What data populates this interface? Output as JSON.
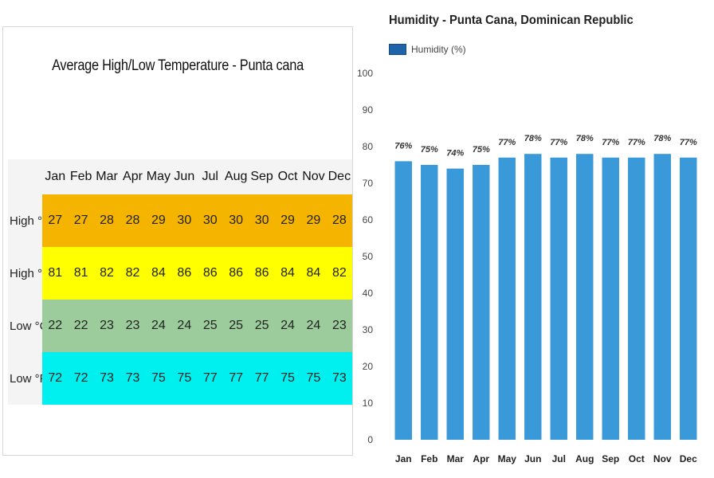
{
  "temperature_table": {
    "title": "Average High/Low Temperature - Punta cana",
    "months": [
      "Jan",
      "Feb",
      "Mar",
      "Apr",
      "May",
      "Jun",
      "Jul",
      "Aug",
      "Sep",
      "Oct",
      "Nov",
      "Dec"
    ],
    "rows": [
      {
        "label": "High °C",
        "color": "#f5b400",
        "values": [
          "27",
          "27",
          "28",
          "28",
          "29",
          "30",
          "30",
          "30",
          "30",
          "29",
          "29",
          "28"
        ]
      },
      {
        "label": "High °F",
        "color": "#ffff00",
        "values": [
          "81",
          "81",
          "82",
          "82",
          "84",
          "86",
          "86",
          "86",
          "86",
          "84",
          "84",
          "82"
        ]
      },
      {
        "label": "Low °C",
        "color": "#9ccc9c",
        "values": [
          "22",
          "22",
          "23",
          "23",
          "24",
          "24",
          "25",
          "25",
          "25",
          "24",
          "24",
          "23"
        ]
      },
      {
        "label": "Low °F",
        "color": "#00f0f0",
        "values": [
          "72",
          "72",
          "73",
          "73",
          "75",
          "75",
          "77",
          "77",
          "77",
          "75",
          "75",
          "73"
        ]
      }
    ]
  },
  "humidity_chart": {
    "title": "Humidity - Punta Cana, Dominican Republic",
    "legend_label": "Humidity (%)",
    "bar_color": "#3a9ad9"
  },
  "chart_data": [
    {
      "type": "table",
      "title": "Average High/Low Temperature - Punta cana",
      "columns": [
        "Jan",
        "Feb",
        "Mar",
        "Apr",
        "May",
        "Jun",
        "Jul",
        "Aug",
        "Sep",
        "Oct",
        "Nov",
        "Dec"
      ],
      "rows": [
        {
          "name": "High °C",
          "values": [
            27,
            27,
            28,
            28,
            29,
            30,
            30,
            30,
            30,
            29,
            29,
            28
          ]
        },
        {
          "name": "High °F",
          "values": [
            81,
            81,
            82,
            82,
            84,
            86,
            86,
            86,
            86,
            84,
            84,
            82
          ]
        },
        {
          "name": "Low °C",
          "values": [
            22,
            22,
            23,
            23,
            24,
            24,
            25,
            25,
            25,
            24,
            24,
            23
          ]
        },
        {
          "name": "Low °F",
          "values": [
            72,
            72,
            73,
            73,
            75,
            75,
            77,
            77,
            77,
            75,
            75,
            73
          ]
        }
      ]
    },
    {
      "type": "bar",
      "title": "Humidity - Punta Cana, Dominican Republic",
      "categories": [
        "Jan",
        "Feb",
        "Mar",
        "Apr",
        "May",
        "Jun",
        "Jul",
        "Aug",
        "Sep",
        "Oct",
        "Nov",
        "Dec"
      ],
      "series": [
        {
          "name": "Humidity (%)",
          "values": [
            76,
            75,
            74,
            75,
            77,
            78,
            77,
            78,
            77,
            77,
            78,
            77
          ]
        }
      ],
      "data_labels": [
        "76%",
        "75%",
        "74%",
        "75%",
        "77%",
        "78%",
        "77%",
        "78%",
        "77%",
        "77%",
        "78%",
        "77%"
      ],
      "ylim": [
        0,
        100
      ],
      "yticks": [
        0,
        10,
        20,
        30,
        40,
        50,
        60,
        70,
        80,
        90,
        100
      ],
      "xlabel": "",
      "ylabel": "",
      "legend": "top-left",
      "grid": false
    }
  ]
}
